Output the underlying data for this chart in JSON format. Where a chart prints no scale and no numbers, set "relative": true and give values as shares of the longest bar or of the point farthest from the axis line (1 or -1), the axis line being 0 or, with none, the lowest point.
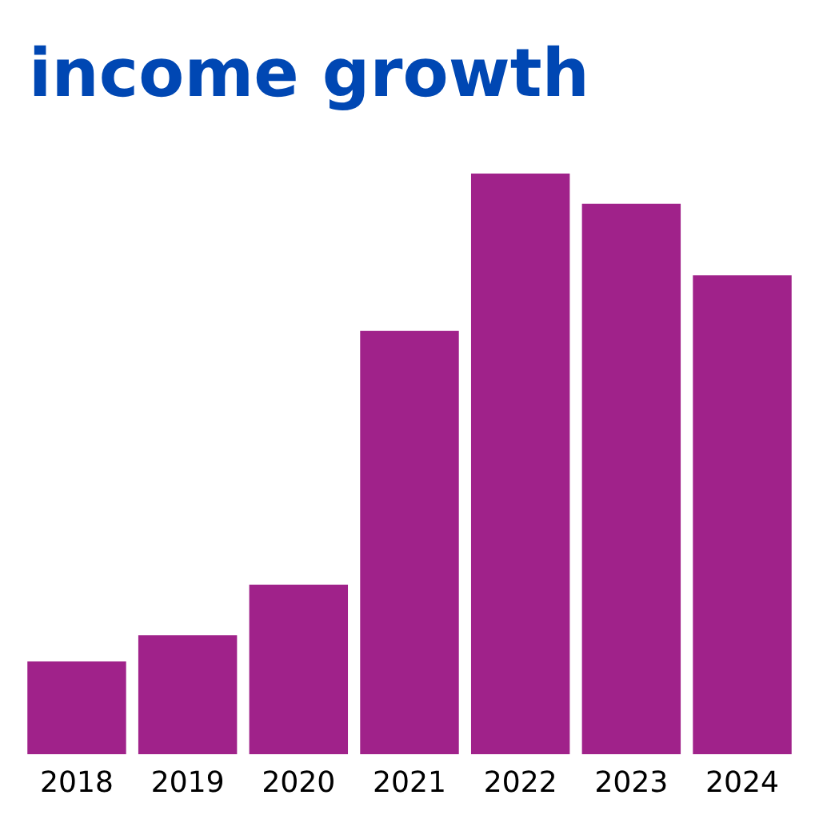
{
  "chart_data": {
    "type": "bar",
    "title": "income growth",
    "relative": true,
    "categories": [
      "2018",
      "2019",
      "2020",
      "2021",
      "2022",
      "2023",
      "2024"
    ],
    "values": [
      0.16,
      0.205,
      0.292,
      0.729,
      1,
      0.948,
      0.825
    ],
    "color": "#a0228a",
    "grid": false,
    "legend": false
  }
}
